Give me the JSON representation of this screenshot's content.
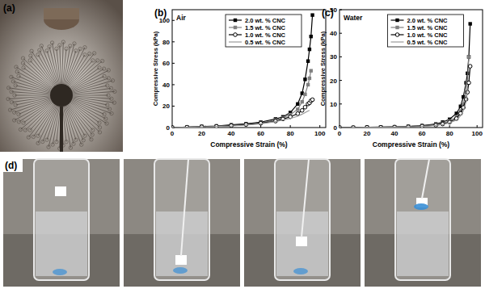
{
  "panels": [
    "(a)",
    "(d)"
  ],
  "chart_data": [
    {
      "type": "line",
      "title": "(b)",
      "subtitle": "Air",
      "x_label": "Compressive Strain (%)",
      "y_label": "Compressive Stress (kPa)",
      "x": [
        0,
        10,
        20,
        30,
        40,
        50,
        60,
        70,
        75,
        80,
        85,
        88,
        90,
        92,
        93,
        94,
        95
      ],
      "series": [
        {
          "name": "2.0 wt. % CNC",
          "color": "#000000",
          "marker": "square",
          "values": [
            0,
            0.5,
            1,
            1.5,
            2.5,
            3.5,
            5,
            8,
            10,
            14,
            22,
            32,
            45,
            62,
            73,
            85,
            105
          ]
        },
        {
          "name": "1.5 wt. % CNC",
          "color": "#808080",
          "marker": "square",
          "values": [
            0,
            0.4,
            0.8,
            1.3,
            2,
            3,
            4.5,
            7,
            9,
            12,
            17,
            24,
            31,
            40,
            46,
            53,
            null
          ]
        },
        {
          "name": "1.0 wt. % CNC",
          "color": "#000000",
          "marker": "circle-open",
          "values": [
            0,
            0.3,
            0.7,
            1.1,
            1.8,
            2.8,
            4,
            6,
            8,
            10,
            13,
            16,
            19,
            22,
            23,
            25,
            26
          ]
        },
        {
          "name": "0.5 wt. % CNC",
          "color": "#999999",
          "marker": "none",
          "values": [
            0,
            0.3,
            0.6,
            1,
            1.5,
            2.4,
            3.5,
            5.5,
            7,
            8.5,
            10.5,
            12.5,
            14,
            15.5,
            16,
            null,
            null
          ]
        }
      ],
      "xlim": [
        0,
        104
      ],
      "xticks": [
        0,
        20,
        40,
        60,
        80,
        100
      ],
      "ylim": [
        0,
        110
      ],
      "yticks": [
        0,
        20,
        40,
        60,
        80,
        100
      ],
      "grid": false,
      "legend": "top"
    },
    {
      "type": "line",
      "title": "(c)",
      "subtitle": "Water",
      "x_label": "Compressive Strain (%)",
      "y_label": "Compressive Stress (kPa)",
      "x": [
        0,
        10,
        20,
        30,
        40,
        50,
        60,
        70,
        75,
        80,
        85,
        88,
        90,
        92,
        93,
        94,
        95
      ],
      "series": [
        {
          "name": "2.0 wt. % CNC",
          "color": "#000000",
          "marker": "square",
          "values": [
            0,
            0,
            0.1,
            0.2,
            0.3,
            0.5,
            0.8,
            1.5,
            2.3,
            3.5,
            6,
            9,
            13,
            19,
            23,
            30,
            44
          ]
        },
        {
          "name": "1.5 wt. % CNC",
          "color": "#808080",
          "marker": "square",
          "values": [
            0,
            0,
            0.1,
            0.2,
            0.3,
            0.4,
            0.7,
            1.2,
            1.8,
            2.8,
            4.5,
            7,
            10,
            15,
            19,
            30,
            null
          ]
        },
        {
          "name": "1.0 wt. % CNC",
          "color": "#000000",
          "marker": "circle-open",
          "values": [
            0,
            0,
            0.1,
            0.1,
            0.2,
            0.3,
            0.6,
            1,
            1.5,
            2.3,
            3.8,
            6,
            8.5,
            12,
            15,
            19,
            26
          ]
        },
        {
          "name": "0.5 wt. % CNC",
          "color": "#999999",
          "marker": "none",
          "values": [
            0,
            0,
            0.1,
            0.1,
            0.2,
            0.3,
            0.5,
            0.9,
            1.3,
            2,
            3.2,
            5,
            7,
            11,
            17,
            null,
            null
          ]
        }
      ],
      "xlim": [
        0,
        104
      ],
      "xticks": [
        0,
        20,
        40,
        60,
        80,
        100
      ],
      "ylim": [
        0,
        50
      ],
      "yticks": [
        0,
        10,
        20,
        30,
        40,
        50
      ],
      "grid": false,
      "legend": "top"
    }
  ]
}
